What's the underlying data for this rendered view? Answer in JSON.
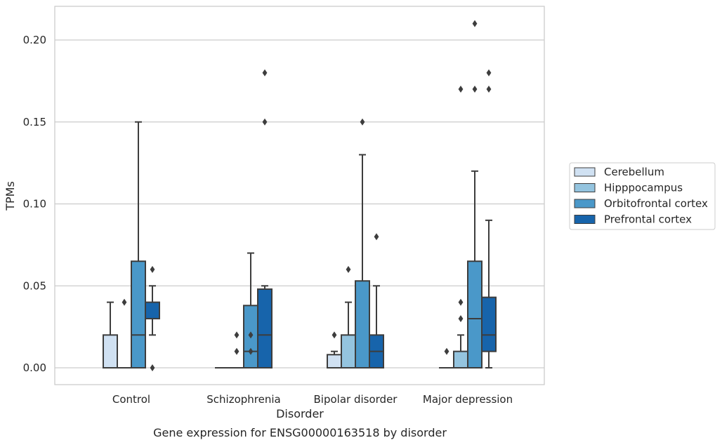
{
  "chart_data": {
    "type": "box",
    "xlabel": "Disorder",
    "ylabel": "TPMs",
    "caption": "Gene expression for ENSG00000163518 by disorder",
    "ylim": [
      -0.01,
      0.22
    ],
    "yticks": [
      0.0,
      0.05,
      0.1,
      0.15,
      0.2
    ],
    "ytick_labels": [
      "0.00",
      "0.05",
      "0.10",
      "0.15",
      "0.20"
    ],
    "grid": "horizontal",
    "legend_position": "right-center",
    "categories": [
      "Control",
      "Schizophrenia",
      "Bipolar disorder",
      "Major depression"
    ],
    "series": [
      {
        "name": "Cerebellum",
        "color": "#d0e1f2",
        "boxes": [
          {
            "q1": 0.0,
            "median": 0.0,
            "q3": 0.02,
            "whisker_low": 0.0,
            "whisker_high": 0.04,
            "outliers": []
          },
          {
            "q1": 0.0,
            "median": 0.0,
            "q3": 0.0,
            "whisker_low": 0.0,
            "whisker_high": 0.0,
            "outliers": []
          },
          {
            "q1": 0.0,
            "median": 0.0,
            "q3": 0.008,
            "whisker_low": 0.0,
            "whisker_high": 0.01,
            "outliers": [
              0.02
            ]
          },
          {
            "q1": 0.0,
            "median": 0.0,
            "q3": 0.0,
            "whisker_low": 0.0,
            "whisker_high": 0.0,
            "outliers": [
              0.01
            ]
          }
        ]
      },
      {
        "name": "Hipppocampus",
        "color": "#94c4df",
        "boxes": [
          {
            "q1": 0.0,
            "median": 0.0,
            "q3": 0.0,
            "whisker_low": 0.0,
            "whisker_high": 0.0,
            "outliers": [
              0.04
            ]
          },
          {
            "q1": 0.0,
            "median": 0.0,
            "q3": 0.0,
            "whisker_low": 0.0,
            "whisker_high": 0.0,
            "outliers": [
              0.01,
              0.02
            ]
          },
          {
            "q1": 0.0,
            "median": 0.0,
            "q3": 0.02,
            "whisker_low": 0.0,
            "whisker_high": 0.04,
            "outliers": [
              0.06
            ]
          },
          {
            "q1": 0.0,
            "median": 0.0,
            "q3": 0.01,
            "whisker_low": 0.0,
            "whisker_high": 0.02,
            "outliers": [
              0.03,
              0.04,
              0.17
            ]
          }
        ]
      },
      {
        "name": "Orbitofrontal cortex",
        "color": "#4a98c9",
        "boxes": [
          {
            "q1": 0.0,
            "median": 0.02,
            "q3": 0.065,
            "whisker_low": 0.0,
            "whisker_high": 0.15,
            "outliers": []
          },
          {
            "q1": 0.0,
            "median": 0.01,
            "q3": 0.038,
            "whisker_low": 0.0,
            "whisker_high": 0.07,
            "outliers": [
              0.01,
              0.02
            ]
          },
          {
            "q1": 0.0,
            "median": 0.0,
            "q3": 0.053,
            "whisker_low": 0.0,
            "whisker_high": 0.13,
            "outliers": [
              0.15
            ]
          },
          {
            "q1": 0.0,
            "median": 0.03,
            "q3": 0.065,
            "whisker_low": 0.0,
            "whisker_high": 0.12,
            "outliers": [
              0.17,
              0.21
            ]
          }
        ]
      },
      {
        "name": "Prefrontal cortex",
        "color": "#1764ab",
        "boxes": [
          {
            "q1": 0.03,
            "median": 0.03,
            "q3": 0.04,
            "whisker_low": 0.02,
            "whisker_high": 0.05,
            "outliers": [
              0.0,
              0.06
            ]
          },
          {
            "q1": 0.0,
            "median": 0.02,
            "q3": 0.048,
            "whisker_low": 0.0,
            "whisker_high": 0.05,
            "outliers": [
              0.15,
              0.18
            ]
          },
          {
            "q1": 0.0,
            "median": 0.01,
            "q3": 0.02,
            "whisker_low": 0.0,
            "whisker_high": 0.05,
            "outliers": [
              0.08
            ]
          },
          {
            "q1": 0.01,
            "median": 0.02,
            "q3": 0.043,
            "whisker_low": 0.0,
            "whisker_high": 0.09,
            "outliers": [
              0.17,
              0.18
            ]
          }
        ]
      }
    ]
  }
}
